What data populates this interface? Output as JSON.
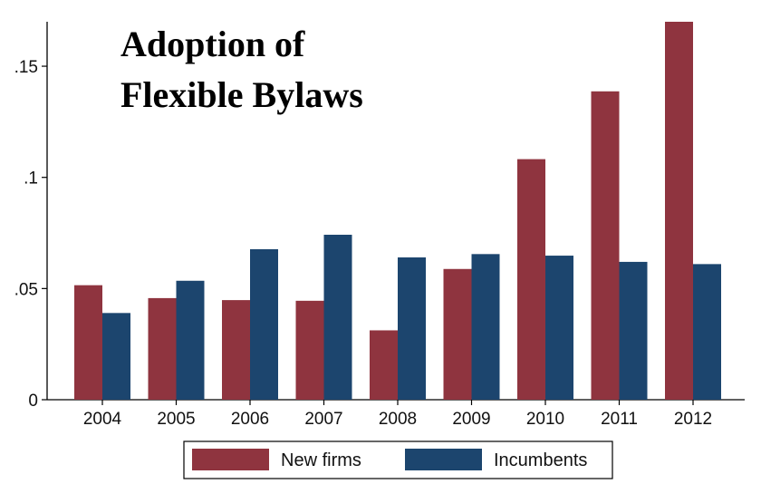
{
  "chart_data": {
    "type": "bar",
    "title_lines": [
      "Adoption of",
      "Flexible Bylaws"
    ],
    "xlabel": "",
    "ylabel": "",
    "categories": [
      "2004",
      "2005",
      "2006",
      "2007",
      "2008",
      "2009",
      "2010",
      "2011",
      "2012"
    ],
    "series": [
      {
        "name": "New firms",
        "color": "#8f343f",
        "values": [
          0.0515,
          0.0457,
          0.0448,
          0.0445,
          0.0312,
          0.0588,
          0.1082,
          0.1387,
          0.17
        ]
      },
      {
        "name": "Incumbents",
        "color": "#1c456e",
        "values": [
          0.039,
          0.0535,
          0.0677,
          0.0742,
          0.064,
          0.0655,
          0.0648,
          0.062,
          0.061
        ]
      }
    ],
    "ylim": [
      0,
      0.17
    ],
    "yticks": [
      {
        "value": 0,
        "label": "0"
      },
      {
        "value": 0.05,
        "label": ".05"
      },
      {
        "value": 0.1,
        "label": ".1"
      },
      {
        "value": 0.15,
        "label": ".15"
      }
    ],
    "grid": false,
    "legend_position": "bottom"
  }
}
